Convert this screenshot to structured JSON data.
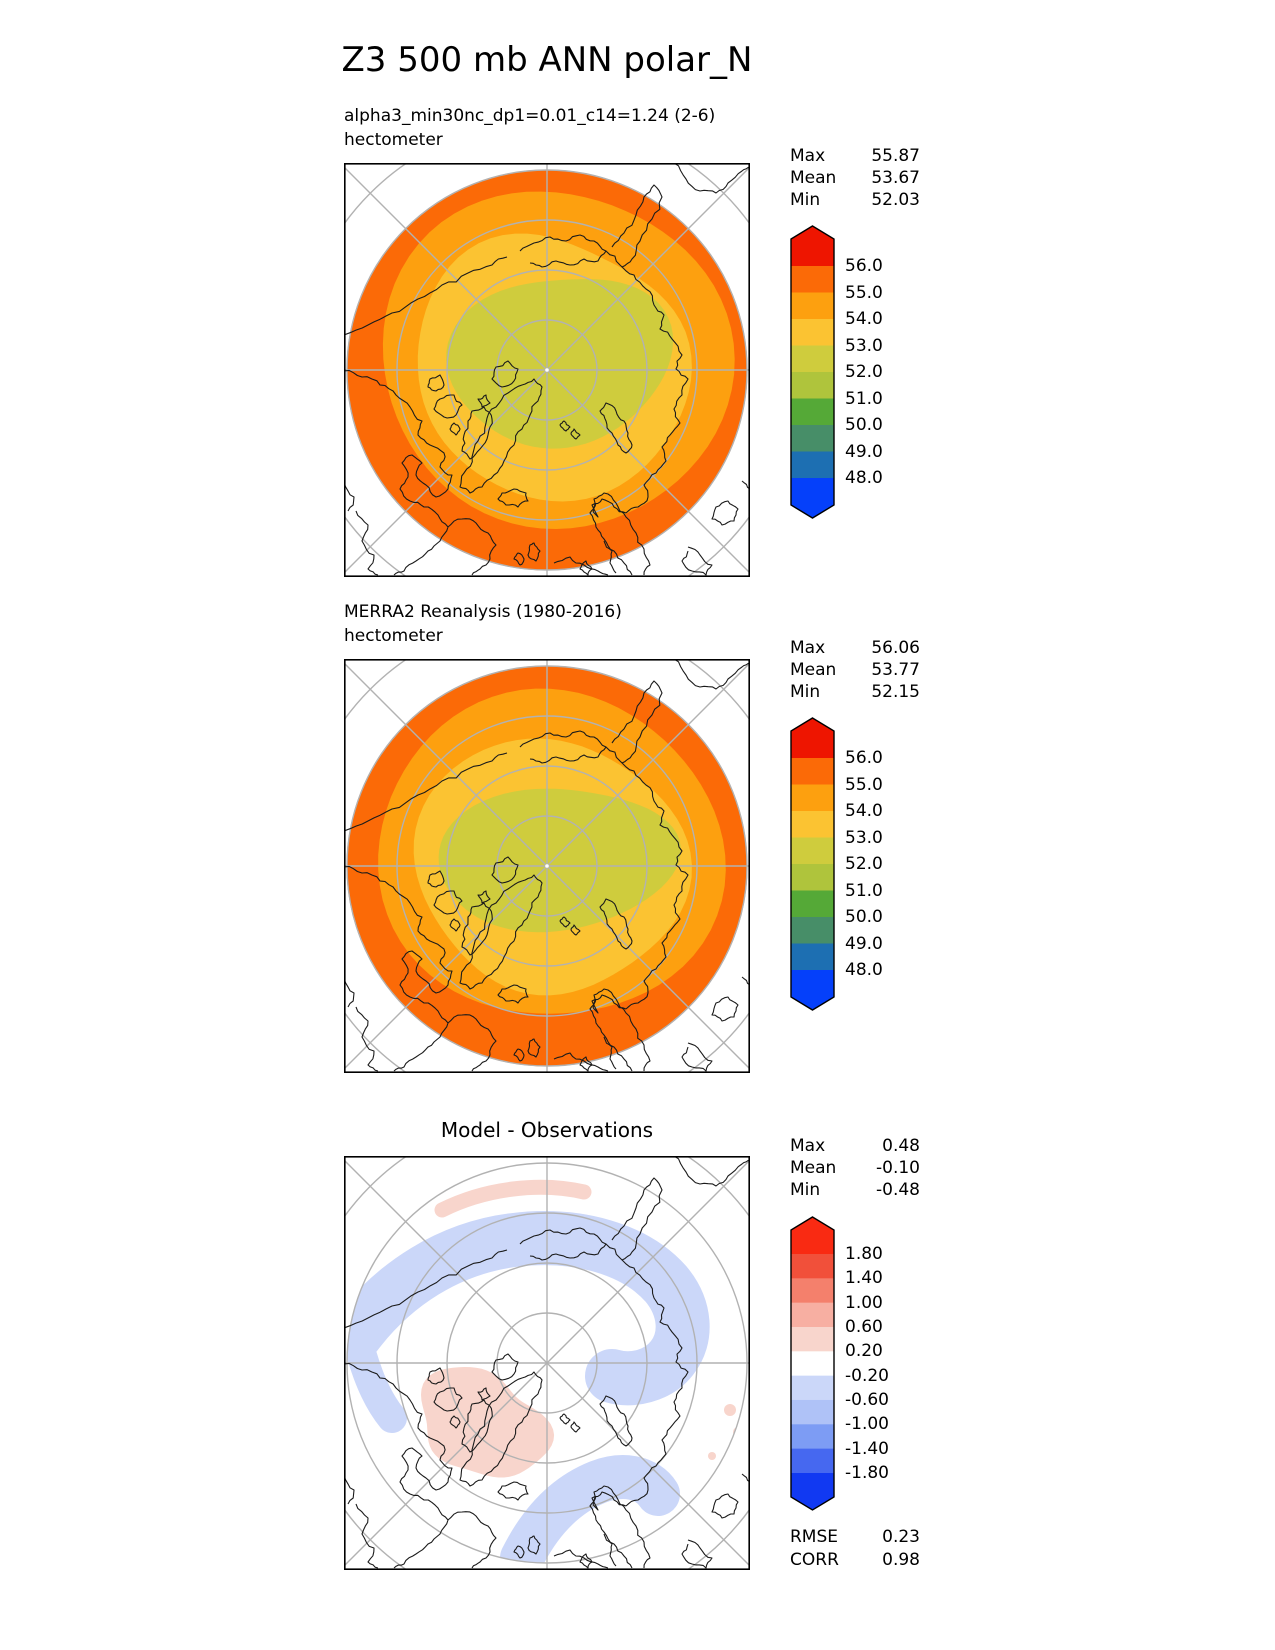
{
  "title": "Z3 500 mb ANN polar_N",
  "panels": [
    {
      "name": "model",
      "subtitle": "alpha3_min30nc_dp1=0.01_c14=1.24 (2-6)",
      "units": "hectometer",
      "stats": {
        "max_label": "Max",
        "max": "55.87",
        "mean_label": "Mean",
        "mean": "53.67",
        "min_label": "Min",
        "min": "52.03"
      },
      "colorbar_labels": [
        "56.0",
        "55.0",
        "54.0",
        "53.0",
        "52.0",
        "51.0",
        "50.0",
        "49.0",
        "48.0"
      ]
    },
    {
      "name": "reference",
      "subtitle": "MERRA2 Reanalysis (1980-2016)",
      "units": "hectometer",
      "stats": {
        "max_label": "Max",
        "max": "56.06",
        "mean_label": "Mean",
        "mean": "53.77",
        "min_label": "Min",
        "min": "52.15"
      },
      "colorbar_labels": [
        "56.0",
        "55.0",
        "54.0",
        "53.0",
        "52.0",
        "51.0",
        "50.0",
        "49.0",
        "48.0"
      ]
    },
    {
      "name": "difference",
      "subtitle": "Model - Observations",
      "stats": {
        "max_label": "Max",
        "max": "0.48",
        "mean_label": "Mean",
        "mean": "-0.10",
        "min_label": "Min",
        "min": "-0.48"
      },
      "colorbar_labels": [
        "1.80",
        "1.40",
        "1.00",
        "0.60",
        "0.20",
        "-0.20",
        "-0.60",
        "-1.00",
        "-1.40",
        "-1.80"
      ],
      "metrics": {
        "rmse_label": "RMSE",
        "rmse": "0.23",
        "corr_label": "CORR",
        "corr": "0.98"
      }
    }
  ],
  "chart_data": [
    {
      "type": "heatmap",
      "subtype": "polar_stereographic_contour_map",
      "title": "alpha3_min30nc_dp1=0.01_c14=1.24 (2-6)",
      "units": "hectometer",
      "variable": "Z3 500 mb ANN",
      "region": "polar_N (50N-90N view, graticule circles every 10 deg lat, spokes every 45 deg lon)",
      "stats": {
        "max": 55.87,
        "mean": 53.67,
        "min": 52.03
      },
      "levels": [
        48.0,
        49.0,
        50.0,
        51.0,
        52.0,
        53.0,
        54.0,
        55.0,
        56.0
      ],
      "band_colors": [
        "#1D6FB2",
        "#478E68",
        "#55A937",
        "#AFC43C",
        "#CFCC3D",
        "#FBC332",
        "#FDA00F",
        "#FB6A07"
      ],
      "below_color": "#0540FA",
      "above_color": "#EE1500",
      "field_summary": "outer ring 55-56 (orange-red) thickest west and south, broad 54-55 orange ring, wide 53-54 amber area, central 52-53 olive-yellow low centered slightly east of pole"
    },
    {
      "type": "heatmap",
      "subtype": "polar_stereographic_contour_map",
      "title": "MERRA2 Reanalysis (1980-2016)",
      "units": "hectometer",
      "variable": "Z3 500 mb ANN",
      "region": "polar_N (50N-90N view, graticule circles every 10 deg lat, spokes every 45 deg lon)",
      "stats": {
        "max": 56.06,
        "mean": 53.77,
        "min": 52.15
      },
      "levels": [
        48.0,
        49.0,
        50.0,
        51.0,
        52.0,
        53.0,
        54.0,
        55.0,
        56.0
      ],
      "band_colors": [
        "#1D6FB2",
        "#478E68",
        "#55A937",
        "#AFC43C",
        "#CFCC3D",
        "#FBC332",
        "#FDA00F",
        "#FB6A07"
      ],
      "below_color": "#0540FA",
      "above_color": "#EE1500",
      "field_summary": "same banding as model with wider 55-56 orange-red ring at southwest and south, elongated east-west 52-53 olive central low"
    },
    {
      "type": "heatmap",
      "subtype": "polar_stereographic_difference_map",
      "title": "Model - Observations",
      "units": "hectometer",
      "stats": {
        "max": 0.48,
        "mean": -0.1,
        "min": -0.48,
        "rmse": 0.23,
        "corr": 0.98
      },
      "levels": [
        -1.8,
        -1.4,
        -1.0,
        -0.6,
        -0.2,
        0.2,
        0.6,
        1.0,
        1.4,
        1.8
      ],
      "band_colors": [
        "#4668F0",
        "#7D9CF4",
        "#AFC2F7",
        "#CBD7F9",
        "#FFFFFF",
        "#F8D5CC",
        "#F7AFA2",
        "#F4806C",
        "#F1503A"
      ],
      "below_color": "#1139F2",
      "above_color": "#F92A12",
      "field_summary": "mostly near zero (white); negative band (-0.2 to -0.6, pale blue) arcing over Siberian side and over Scandinavia/North Atlantic; positive patch (0.2 to 0.6, pale pink) over Canada/Greenland, thin pink arc near top rim, pink specks at east rim"
    }
  ]
}
